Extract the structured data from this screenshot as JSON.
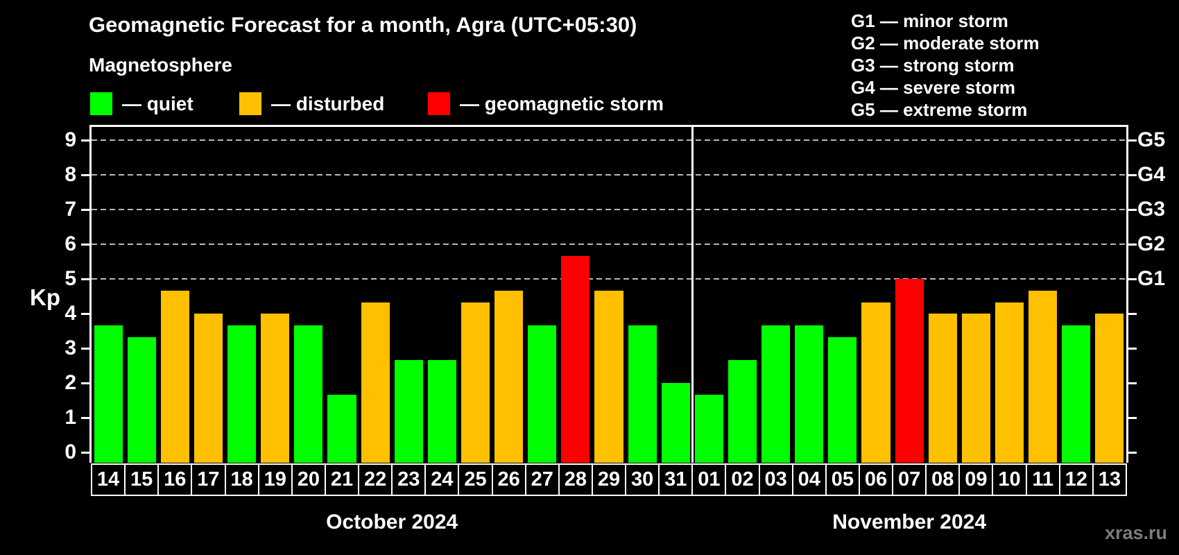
{
  "header": {
    "title": "Geomagnetic Forecast for a month, Agra (UTC+05:30)",
    "subtitle": "Magnetosphere"
  },
  "legend": {
    "items": [
      {
        "name": "quiet",
        "label": "— quiet",
        "color": "#00ff00"
      },
      {
        "name": "disturbed",
        "label": "— disturbed",
        "color": "#ffc000"
      },
      {
        "name": "storm",
        "label": "— geomagnetic storm",
        "color": "#ff0000"
      }
    ]
  },
  "g_scale": {
    "items": [
      {
        "text": "G1 — minor storm"
      },
      {
        "text": "G2 — moderate storm"
      },
      {
        "text": "G3 — strong storm"
      },
      {
        "text": "G4 — severe storm"
      },
      {
        "text": "G5 — extreme storm"
      }
    ]
  },
  "footer": {
    "watermark": "xras.ru"
  },
  "chart_data": {
    "type": "bar",
    "title": "Geomagnetic Forecast for a month, Agra (UTC+05:30)",
    "subtitle": "Magnetosphere",
    "ylabel": "Kp",
    "ylim": [
      0,
      9.4
    ],
    "yticks": [
      0,
      1,
      2,
      3,
      4,
      5,
      6,
      7,
      8,
      9
    ],
    "gridlines_at_kp": [
      5,
      6,
      7,
      8,
      9
    ],
    "grid": "dashed horizontal at storm levels only",
    "legend_position": "top",
    "right_axis": [
      {
        "kp": 5,
        "label": "G1"
      },
      {
        "kp": 6,
        "label": "G2"
      },
      {
        "kp": 7,
        "label": "G3"
      },
      {
        "kp": 8,
        "label": "G4"
      },
      {
        "kp": 9,
        "label": "G5"
      }
    ],
    "status_colors": {
      "quiet": "#00ff00",
      "disturbed": "#ffc000",
      "storm": "#ff0000"
    },
    "months": [
      {
        "label": "October 2024",
        "days": [
          {
            "day": "14",
            "kp": 3.67,
            "status": "quiet"
          },
          {
            "day": "15",
            "kp": 3.33,
            "status": "quiet"
          },
          {
            "day": "16",
            "kp": 4.67,
            "status": "disturbed"
          },
          {
            "day": "17",
            "kp": 4.0,
            "status": "disturbed"
          },
          {
            "day": "18",
            "kp": 3.67,
            "status": "quiet"
          },
          {
            "day": "19",
            "kp": 4.0,
            "status": "disturbed"
          },
          {
            "day": "20",
            "kp": 3.67,
            "status": "quiet"
          },
          {
            "day": "21",
            "kp": 1.67,
            "status": "quiet"
          },
          {
            "day": "22",
            "kp": 4.33,
            "status": "disturbed"
          },
          {
            "day": "23",
            "kp": 2.67,
            "status": "quiet"
          },
          {
            "day": "24",
            "kp": 2.67,
            "status": "quiet"
          },
          {
            "day": "25",
            "kp": 4.33,
            "status": "disturbed"
          },
          {
            "day": "26",
            "kp": 4.67,
            "status": "disturbed"
          },
          {
            "day": "27",
            "kp": 3.67,
            "status": "quiet"
          },
          {
            "day": "28",
            "kp": 5.67,
            "status": "storm"
          },
          {
            "day": "29",
            "kp": 4.67,
            "status": "disturbed"
          },
          {
            "day": "30",
            "kp": 3.67,
            "status": "quiet"
          },
          {
            "day": "31",
            "kp": 2.0,
            "status": "quiet"
          }
        ]
      },
      {
        "label": "November 2024",
        "days": [
          {
            "day": "01",
            "kp": 1.67,
            "status": "quiet"
          },
          {
            "day": "02",
            "kp": 2.67,
            "status": "quiet"
          },
          {
            "day": "03",
            "kp": 3.67,
            "status": "quiet"
          },
          {
            "day": "04",
            "kp": 3.67,
            "status": "quiet"
          },
          {
            "day": "05",
            "kp": 3.33,
            "status": "quiet"
          },
          {
            "day": "06",
            "kp": 4.33,
            "status": "disturbed"
          },
          {
            "day": "07",
            "kp": 5.0,
            "status": "storm"
          },
          {
            "day": "08",
            "kp": 4.0,
            "status": "disturbed"
          },
          {
            "day": "09",
            "kp": 4.0,
            "status": "disturbed"
          },
          {
            "day": "10",
            "kp": 4.33,
            "status": "disturbed"
          },
          {
            "day": "11",
            "kp": 4.67,
            "status": "disturbed"
          },
          {
            "day": "12",
            "kp": 3.67,
            "status": "quiet"
          },
          {
            "day": "13",
            "kp": 4.0,
            "status": "disturbed"
          }
        ]
      }
    ]
  }
}
